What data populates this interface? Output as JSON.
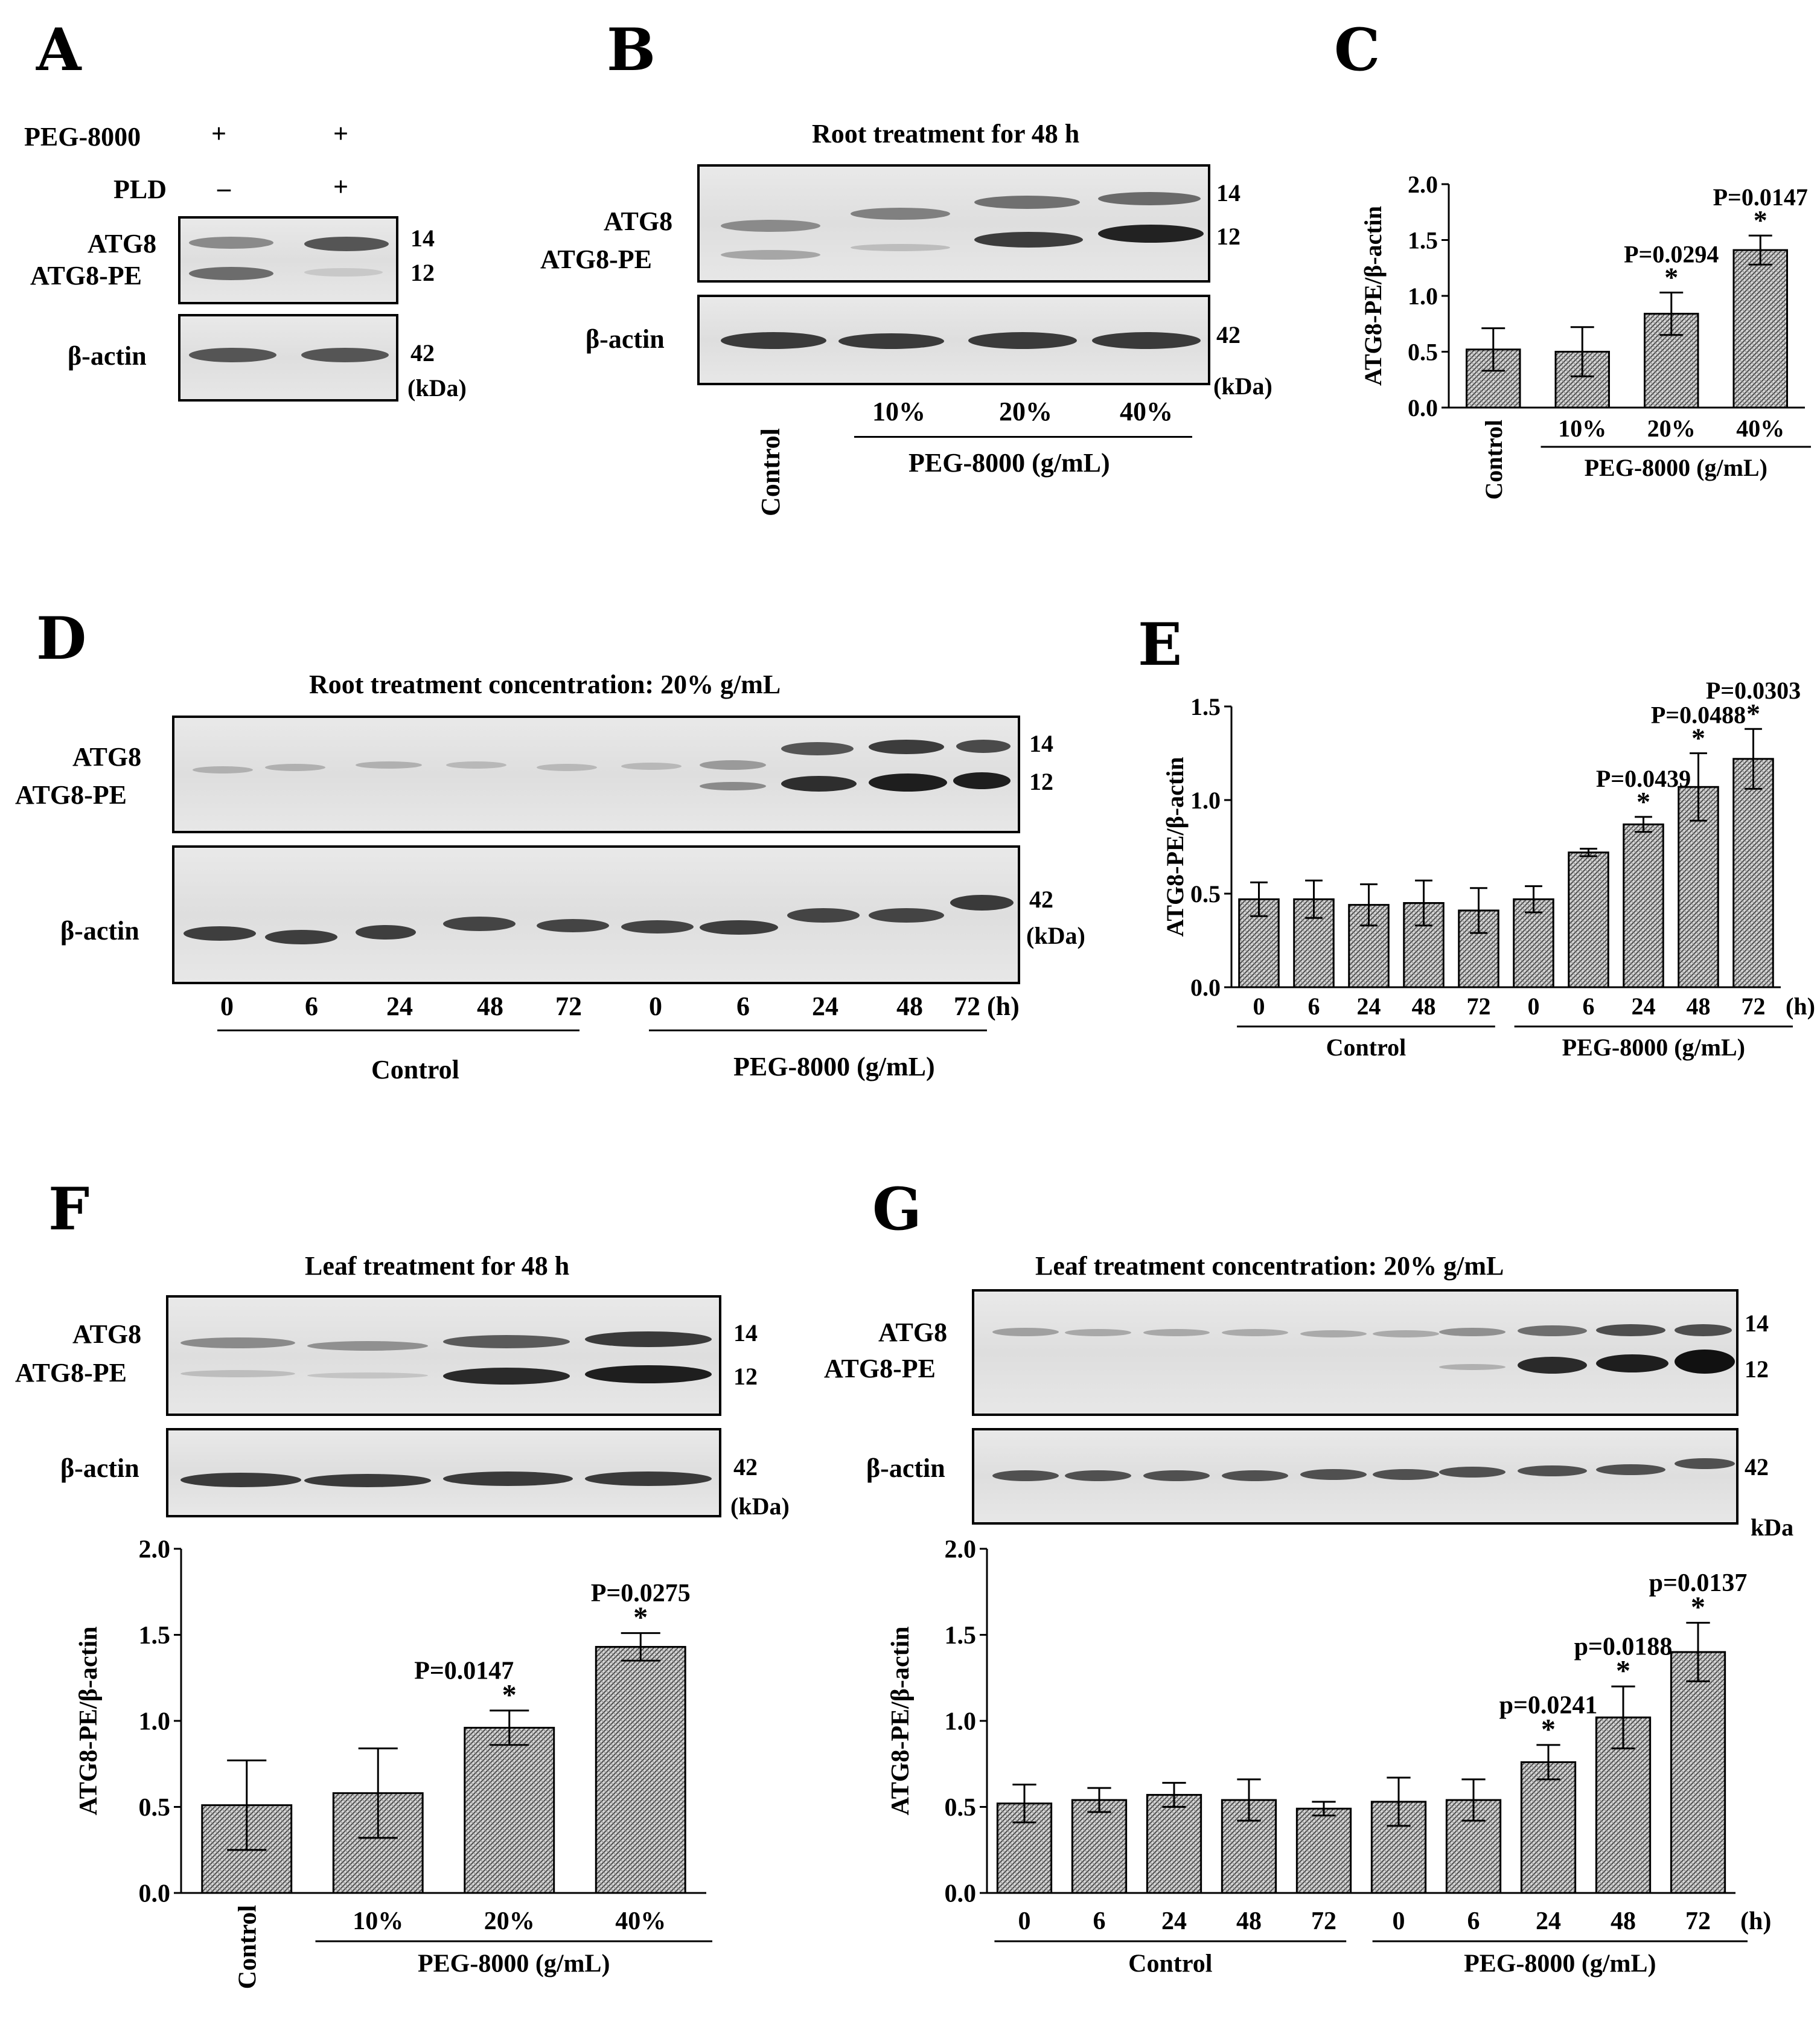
{
  "panels": {
    "A": {
      "label": "A",
      "peg_label": "PEG-8000",
      "peg_signs": [
        "+",
        "+"
      ],
      "pld_label": "PLD",
      "pld_signs": [
        "–",
        "+"
      ],
      "atg8": "ATG8",
      "atg8pe": "ATG8-PE",
      "actin": "β-actin",
      "mw": [
        "14",
        "12",
        "42",
        "(kDa)"
      ]
    },
    "B": {
      "label": "B",
      "title": "Root treatment for 48 h",
      "atg8": "ATG8",
      "atg8pe": "ATG8-PE",
      "actin": "β-actin",
      "mw": [
        "14",
        "12",
        "42",
        "(kDa)"
      ],
      "lanes": [
        "Control",
        "10%",
        "20%",
        "40%"
      ],
      "group": "PEG-8000 (g/mL)"
    },
    "D": {
      "label": "D",
      "title": "Root treatment concentration: 20% g/mL",
      "atg8": "ATG8",
      "atg8pe": "ATG8-PE",
      "actin": "β-actin",
      "mw": [
        "14",
        "12",
        "42",
        "(kDa)"
      ],
      "lanes": [
        "0",
        "6",
        "24",
        "48",
        "72",
        "0",
        "6",
        "24",
        "48",
        "72 (h)"
      ],
      "group1": "Control",
      "group2": "PEG-8000 (g/mL)"
    },
    "F": {
      "label": "F",
      "title": "Leaf  treatment for 48 h",
      "atg8": "ATG8",
      "atg8pe": "ATG8-PE",
      "actin": "β-actin",
      "mw": [
        "14",
        "12",
        "42",
        "(kDa)"
      ]
    },
    "G": {
      "label": "G",
      "title": "Leaf treatment concentration: 20% g/mL",
      "atg8": "ATG8",
      "atg8pe": "ATG8-PE",
      "actin": "β-actin",
      "mw": [
        "14",
        "12",
        "42",
        "kDa"
      ]
    }
  },
  "chart_data": [
    {
      "id": "C",
      "label": "C",
      "type": "bar",
      "ylabel": "ATG8-PE/β-actin",
      "ylim": [
        0,
        2.0
      ],
      "yticks": [
        "0.0",
        "0.5",
        "1.0",
        "1.5",
        "2.0"
      ],
      "categories": [
        "Control",
        "10%",
        "20%",
        "40%"
      ],
      "values": [
        0.52,
        0.5,
        0.84,
        1.41
      ],
      "errors": [
        0.19,
        0.22,
        0.19,
        0.13
      ],
      "annotations": [
        "",
        "",
        "P=0.0294",
        "P=0.0147"
      ],
      "stars": [
        "",
        "",
        "*",
        "*"
      ],
      "group_label": "PEG-8000 (g/mL)"
    },
    {
      "id": "E",
      "label": "E",
      "type": "bar",
      "ylabel": "ATG8-PE/β-actin",
      "ylim": [
        0,
        1.5
      ],
      "yticks": [
        "0.0",
        "0.5",
        "1.0",
        "1.5"
      ],
      "categories": [
        "0",
        "6",
        "24",
        "48",
        "72",
        "0",
        "6",
        "24",
        "48",
        "72"
      ],
      "unit": "(h)",
      "values": [
        0.47,
        0.47,
        0.44,
        0.45,
        0.41,
        0.47,
        0.72,
        0.87,
        1.07,
        1.22
      ],
      "errors": [
        0.09,
        0.1,
        0.11,
        0.12,
        0.12,
        0.07,
        0.02,
        0.04,
        0.18,
        0.16
      ],
      "annotations": [
        "",
        "",
        "",
        "",
        "",
        "",
        "",
        "P=0.0439",
        "P=0.0488",
        "P=0.0303"
      ],
      "stars": [
        "",
        "",
        "",
        "",
        "",
        "",
        "",
        "*",
        "*",
        "*"
      ],
      "group1": "Control",
      "group2": "PEG-8000 (g/mL)"
    },
    {
      "id": "F",
      "type": "bar",
      "ylabel": "ATG8-PE/β-actin",
      "ylim": [
        0,
        2.0
      ],
      "yticks": [
        "0.0",
        "0.5",
        "1.0",
        "1.5",
        "2.0"
      ],
      "categories": [
        "Control",
        "10%",
        "20%",
        "40%"
      ],
      "values": [
        0.51,
        0.58,
        0.96,
        1.43
      ],
      "errors": [
        0.26,
        0.26,
        0.1,
        0.08
      ],
      "annotations": [
        "",
        "",
        "P=0.0147",
        "P=0.0275"
      ],
      "stars": [
        "",
        "",
        "*",
        "*"
      ],
      "group_label": "PEG-8000 (g/mL)"
    },
    {
      "id": "G",
      "type": "bar",
      "ylabel": "ATG8-PE/β-actin",
      "ylim": [
        0,
        2.0
      ],
      "yticks": [
        "0.0",
        "0.5",
        "1.0",
        "1.5",
        "2.0"
      ],
      "categories": [
        "0",
        "6",
        "24",
        "48",
        "72",
        "0",
        "6",
        "24",
        "48",
        "72"
      ],
      "unit": "(h)",
      "values": [
        0.52,
        0.54,
        0.57,
        0.54,
        0.49,
        0.53,
        0.54,
        0.76,
        1.02,
        1.4
      ],
      "errors": [
        0.11,
        0.07,
        0.07,
        0.12,
        0.04,
        0.14,
        0.12,
        0.1,
        0.18,
        0.17
      ],
      "annotations": [
        "",
        "",
        "",
        "",
        "",
        "",
        "",
        "p=0.0241",
        "p=0.0188",
        "p=0.0137"
      ],
      "stars": [
        "",
        "",
        "",
        "",
        "",
        "",
        "",
        "*",
        "*",
        "*"
      ],
      "group1": "Control",
      "group2": "PEG-8000 (g/mL)"
    }
  ]
}
